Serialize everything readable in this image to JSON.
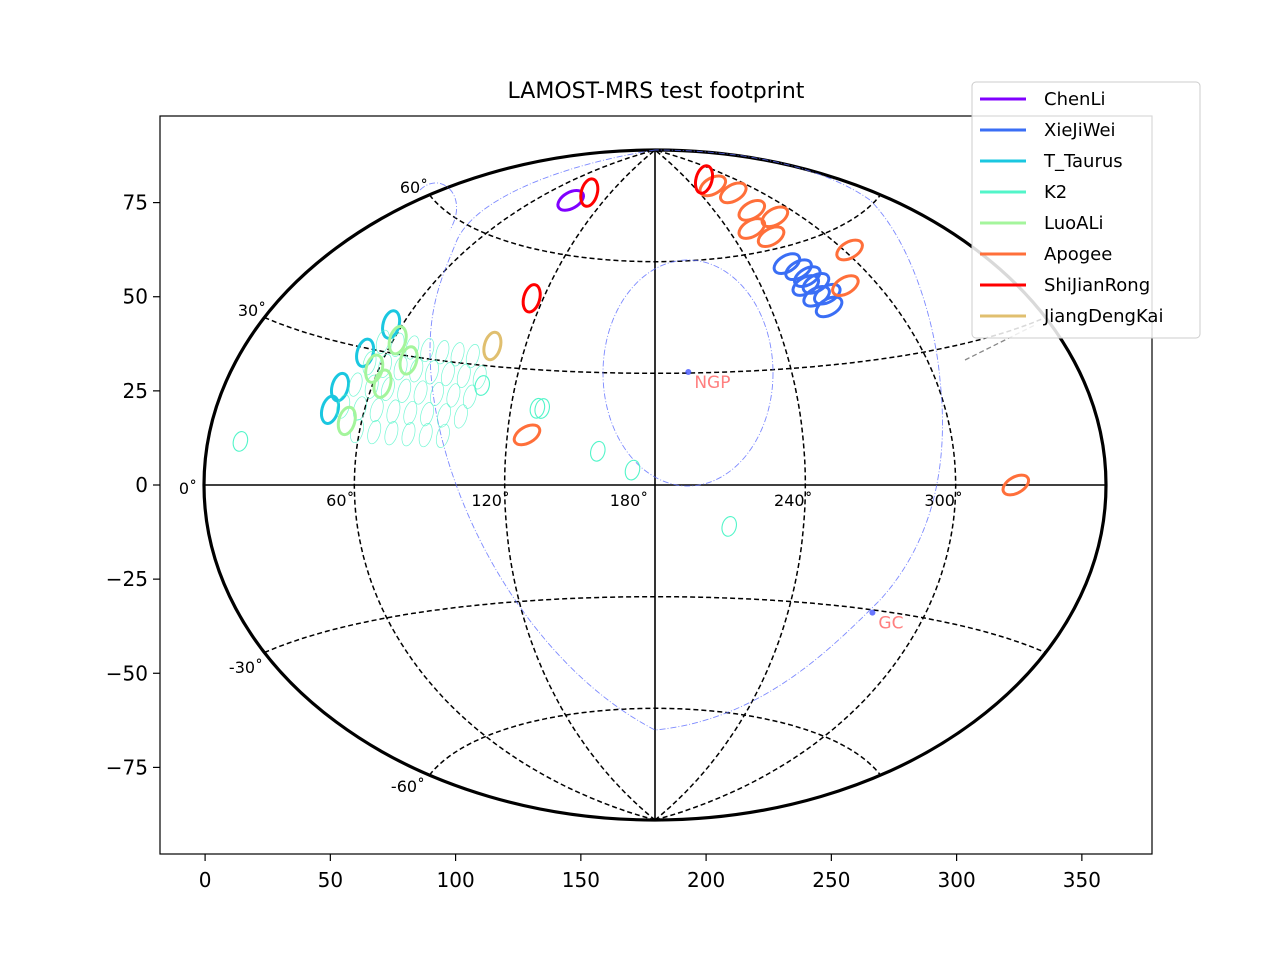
{
  "chart_data": {
    "type": "scatter",
    "title": "LAMOST-MRS test footprint",
    "xlabel": "",
    "ylabel": "",
    "xlim": [
      -18,
      378
    ],
    "ylim": [
      -98,
      98
    ],
    "x_ticks": [
      0,
      50,
      100,
      150,
      200,
      250,
      300,
      350
    ],
    "y_ticks": [
      75,
      50,
      25,
      0,
      -25,
      -50,
      -75
    ],
    "x_tick_labels": [
      "0",
      "50",
      "100",
      "150",
      "200",
      "250",
      "300",
      "350"
    ],
    "y_tick_labels": [
      "75",
      "50",
      "25",
      "0",
      "−25",
      "−50",
      "−75"
    ],
    "projection": {
      "name": "aitoff",
      "center_lon": 180,
      "lat_lines": [
        60,
        30,
        -30,
        -60
      ],
      "lon_lines": [
        60,
        120,
        240,
        300
      ],
      "lat_labels": [
        {
          "text": "60˚",
          "lon": 0,
          "lat": 60
        },
        {
          "text": "30˚",
          "lon": 0,
          "lat": 30
        },
        {
          "text": "0˚",
          "lon": 0,
          "lat": 0
        },
        {
          "text": "-30˚",
          "lon": 0,
          "lat": -30
        },
        {
          "text": "-60˚",
          "lon": 0,
          "lat": -60
        }
      ],
      "lon_labels": [
        {
          "text": "60˚",
          "lon": 60
        },
        {
          "text": "120˚",
          "lon": 120
        },
        {
          "text": "180˚",
          "lon": 180
        },
        {
          "text": "240˚",
          "lon": 240
        },
        {
          "text": "300˚",
          "lon": 300
        }
      ]
    },
    "reference_points": [
      {
        "label": "NGP",
        "x": 192.9,
        "y": 30,
        "color": "#ff7f7f"
      },
      {
        "label": "GC",
        "x": 266.4,
        "y": -33.9,
        "color": "#ff7f7f"
      }
    ],
    "legend_position": "top-right",
    "series": [
      {
        "name": "ChenLi",
        "color": "#8000ff",
        "fields": [
          [
            88,
            73
          ]
        ]
      },
      {
        "name": "XieJiWei",
        "color": "#3a6ef5",
        "fields": [
          [
            262,
            56
          ],
          [
            266,
            54
          ],
          [
            268,
            52
          ],
          [
            264,
            50
          ],
          [
            270,
            50
          ],
          [
            266,
            47
          ],
          [
            272,
            47
          ],
          [
            269,
            44
          ]
        ]
      },
      {
        "name": "T_Taurus",
        "color": "#1ac7e0",
        "fields": [
          [
            55,
            36
          ],
          [
            51,
            29
          ],
          [
            47,
            21
          ],
          [
            46,
            16
          ]
        ]
      },
      {
        "name": "K2",
        "color": "#52f5c9",
        "fields": [
          [
            13,
            8
          ],
          [
            131,
            20
          ],
          [
            133,
            20
          ],
          [
            157,
            9
          ],
          [
            171,
            4
          ],
          [
            210,
            -11
          ],
          [
            106,
            25
          ],
          [
            56,
            32
          ],
          [
            63,
            32
          ],
          [
            70,
            32
          ],
          [
            77,
            32
          ],
          [
            84,
            32
          ],
          [
            91,
            32
          ],
          [
            98,
            32
          ],
          [
            55,
            27
          ],
          [
            62,
            27
          ],
          [
            69,
            27
          ],
          [
            76,
            27
          ],
          [
            83,
            27
          ],
          [
            90,
            27
          ],
          [
            97,
            27
          ],
          [
            104,
            27
          ],
          [
            53,
            22
          ],
          [
            60,
            22
          ],
          [
            67,
            22
          ],
          [
            74,
            22
          ],
          [
            81,
            22
          ],
          [
            88,
            22
          ],
          [
            95,
            22
          ],
          [
            102,
            22
          ],
          [
            51,
            17
          ],
          [
            58,
            17
          ],
          [
            65,
            17
          ],
          [
            72,
            17
          ],
          [
            79,
            17
          ],
          [
            86,
            17
          ],
          [
            93,
            17
          ],
          [
            100,
            17
          ],
          [
            59,
            12
          ],
          [
            66,
            12
          ],
          [
            73,
            12
          ],
          [
            80,
            12
          ],
          [
            87,
            12
          ],
          [
            94,
            12
          ]
        ]
      },
      {
        "name": "LuoALi",
        "color": "#a4f59c",
        "fields": [
          [
            62,
            33
          ],
          [
            71,
            29
          ],
          [
            58,
            26
          ],
          [
            64,
            23
          ],
          [
            54,
            14
          ]
        ]
      },
      {
        "name": "Apogee",
        "color": "#ff6f3a",
        "fields": [
          [
            265,
            78
          ],
          [
            276,
            75
          ],
          [
            272,
            70
          ],
          [
            283,
            67
          ],
          [
            258,
            66
          ],
          [
            266,
            63
          ],
          [
            303,
            55
          ],
          [
            324,
            0
          ],
          [
            128,
            13
          ],
          [
            284,
            48
          ]
        ]
      },
      {
        "name": "ShiJianRong",
        "color": "#ff0000",
        "fields": [
          [
            265,
            80
          ],
          [
            96,
            76
          ],
          [
            114,
            48
          ]
        ]
      },
      {
        "name": "JiangDengKai",
        "color": "#e0bf6f",
        "fields": [
          [
            105,
            35
          ]
        ]
      }
    ]
  }
}
